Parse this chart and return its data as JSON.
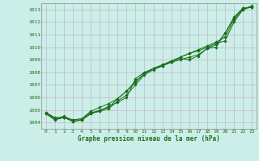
{
  "title": "Graphe pression niveau de la mer (hPa)",
  "bg_color": "#cceee8",
  "plot_bg_color": "#cceee8",
  "grid_color": "#c0b8c8",
  "line_color": "#1a6e1a",
  "spine_color": "#888888",
  "tick_color": "#1a6e1a",
  "xlim": [
    -0.5,
    23.5
  ],
  "ylim": [
    1003.5,
    1013.5
  ],
  "yticks": [
    1004,
    1005,
    1006,
    1007,
    1008,
    1009,
    1010,
    1011,
    1012,
    1013
  ],
  "xticks": [
    0,
    1,
    2,
    3,
    4,
    5,
    6,
    7,
    8,
    9,
    10,
    11,
    12,
    13,
    14,
    15,
    16,
    17,
    18,
    19,
    20,
    21,
    22,
    23
  ],
  "series": [
    [
      1004.7,
      1004.3,
      1004.4,
      1004.1,
      1004.2,
      1004.7,
      1004.9,
      1005.3,
      1005.6,
      1006.0,
      1007.5,
      1008.0,
      1008.3,
      1008.5,
      1008.8,
      1009.1,
      1009.0,
      1009.3,
      1009.9,
      1010.2,
      1011.1,
      1012.4,
      1013.1,
      1013.2
    ],
    [
      1004.7,
      1004.2,
      1004.4,
      1004.1,
      1004.2,
      1004.7,
      1005.0,
      1005.2,
      1005.9,
      1006.5,
      1007.3,
      1007.9,
      1008.3,
      1008.6,
      1008.8,
      1009.0,
      1009.2,
      1009.4,
      1009.9,
      1010.0,
      1011.1,
      1012.3,
      1013.1,
      1013.2
    ],
    [
      1004.8,
      1004.3,
      1004.5,
      1004.2,
      1004.3,
      1004.8,
      1004.9,
      1005.1,
      1005.7,
      1006.2,
      1007.0,
      1007.8,
      1008.2,
      1008.5,
      1008.9,
      1009.2,
      1009.5,
      1009.7,
      1010.0,
      1010.3,
      1010.5,
      1012.0,
      1013.0,
      1013.2
    ],
    [
      1004.8,
      1004.4,
      1004.4,
      1004.2,
      1004.3,
      1004.9,
      1005.2,
      1005.5,
      1005.9,
      1006.5,
      1007.2,
      1007.9,
      1008.3,
      1008.6,
      1008.9,
      1009.2,
      1009.5,
      1009.8,
      1010.1,
      1010.4,
      1010.8,
      1012.2,
      1013.0,
      1013.3
    ]
  ]
}
